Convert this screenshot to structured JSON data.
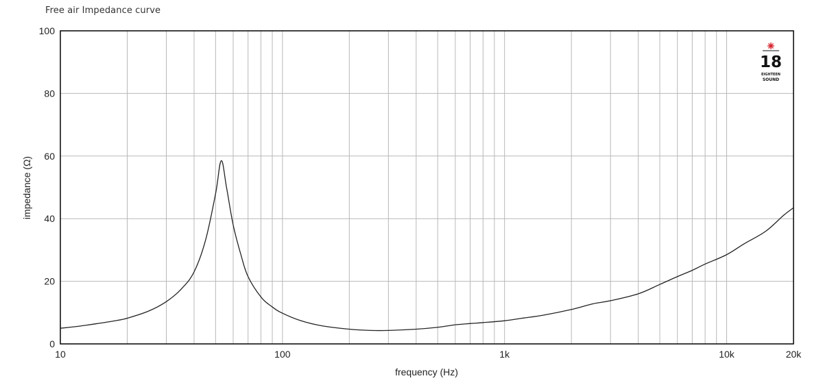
{
  "title": "Free air Impedance curve",
  "logo": {
    "number": "18",
    "subtext": "EIGHTEEN",
    "word": "SOUND",
    "star_color": "#d4202a"
  },
  "colors": {
    "curve": "#222222",
    "grid": "#b8b8b8",
    "frame": "#000000",
    "background": "#ffffff"
  },
  "chart_data": {
    "type": "line",
    "title": "Free air Impedance curve",
    "xlabel": "frequency (Hz)",
    "ylabel": "impedance (Ω)",
    "xscale": "log",
    "xlim": [
      10,
      20000
    ],
    "ylim": [
      0,
      100
    ],
    "xticks": [
      {
        "value": 10,
        "label": "10"
      },
      {
        "value": 100,
        "label": "100"
      },
      {
        "value": 1000,
        "label": "1k"
      },
      {
        "value": 10000,
        "label": "10k"
      },
      {
        "value": 20000,
        "label": "20k"
      }
    ],
    "yticks": [
      {
        "value": 0,
        "label": "0"
      },
      {
        "value": 20,
        "label": "20"
      },
      {
        "value": 40,
        "label": "40"
      },
      {
        "value": 60,
        "label": "60"
      },
      {
        "value": 80,
        "label": "80"
      },
      {
        "value": 100,
        "label": "100"
      }
    ],
    "grid": true,
    "series": [
      {
        "x": [
          10,
          12,
          15,
          18,
          20,
          25,
          30,
          35,
          40,
          45,
          50,
          53,
          56,
          60,
          65,
          70,
          80,
          90,
          100,
          120,
          150,
          200,
          250,
          300,
          400,
          500,
          600,
          700,
          800,
          1000,
          1200,
          1500,
          2000,
          2500,
          3000,
          4000,
          5000,
          6000,
          7000,
          8000,
          10000,
          12000,
          15000,
          18000,
          20000
        ],
        "y": [
          5.0,
          5.6,
          6.6,
          7.5,
          8.2,
          10.5,
          13.5,
          17.5,
          23.0,
          33.0,
          48.0,
          58.5,
          50.0,
          38.0,
          28.5,
          21.5,
          15.0,
          11.8,
          9.8,
          7.5,
          5.8,
          4.7,
          4.3,
          4.3,
          4.7,
          5.3,
          6.1,
          6.5,
          6.8,
          7.4,
          8.2,
          9.2,
          11.0,
          12.8,
          13.8,
          16.0,
          19.0,
          21.5,
          23.5,
          25.5,
          28.5,
          32.0,
          36.0,
          41.0,
          43.5
        ]
      }
    ]
  }
}
